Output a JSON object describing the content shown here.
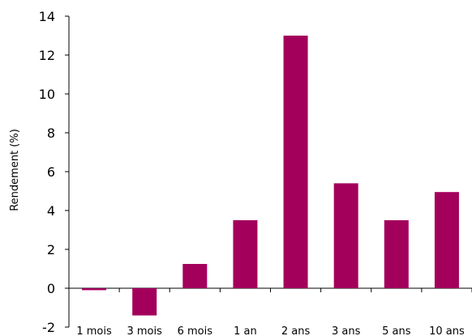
{
  "chart_data": {
    "type": "bar",
    "title": "",
    "xlabel": "",
    "ylabel": "Rendement (%)",
    "categories": [
      "1 mois",
      "3  mois",
      "6 mois",
      "1 an",
      "2 ans",
      "3 ans",
      "5 ans",
      "10 ans"
    ],
    "values": [
      -0.1,
      -1.4,
      1.25,
      3.5,
      13.0,
      5.4,
      3.5,
      4.95
    ],
    "ylim": [
      -2,
      14
    ],
    "yticks": [
      "-2",
      "0",
      "2",
      "4",
      "6",
      "8",
      "10",
      "12",
      "14"
    ],
    "bar_color": "#A3005C",
    "grid": false,
    "legend": "none"
  }
}
